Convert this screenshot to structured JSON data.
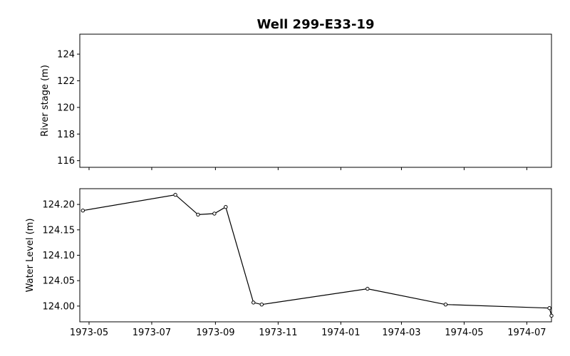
{
  "chart_data": [
    {
      "type": "line",
      "title": "Well 299-E33-19",
      "ylabel": "River stage (m)",
      "xlabel": "",
      "ylim": [
        115.5,
        125.5
      ],
      "y_ticks": [
        "116",
        "118",
        "120",
        "122",
        "124"
      ],
      "x_ticks_shared": true,
      "grid": false,
      "series": []
    },
    {
      "type": "line",
      "title": "",
      "ylabel": "Water Level (m)",
      "xlabel": "",
      "ylim": [
        123.969,
        124.231
      ],
      "y_ticks": [
        "124.00",
        "124.05",
        "124.10",
        "124.15",
        "124.20"
      ],
      "x_ticks": [
        "1973-05",
        "1973-07",
        "1973-09",
        "1973-11",
        "1974-01",
        "1974-03",
        "1974-05",
        "1974-07"
      ],
      "grid": false,
      "series": [
        {
          "color": "#000000",
          "marker": "circle-open",
          "points": [
            {
              "x": "1973-04-25",
              "y": 124.188
            },
            {
              "x": "1973-07-24",
              "y": 124.219
            },
            {
              "x": "1973-08-15",
              "y": 124.18
            },
            {
              "x": "1973-08-31",
              "y": 124.182
            },
            {
              "x": "1973-09-11",
              "y": 124.195
            },
            {
              "x": "1973-10-08",
              "y": 124.007
            },
            {
              "x": "1973-10-16",
              "y": 124.003
            },
            {
              "x": "1974-01-27",
              "y": 124.034
            },
            {
              "x": "1974-04-13",
              "y": 124.003
            },
            {
              "x": "1974-07-23",
              "y": 123.996
            },
            {
              "x": "1974-07-25",
              "y": 123.981
            }
          ]
        }
      ]
    }
  ]
}
